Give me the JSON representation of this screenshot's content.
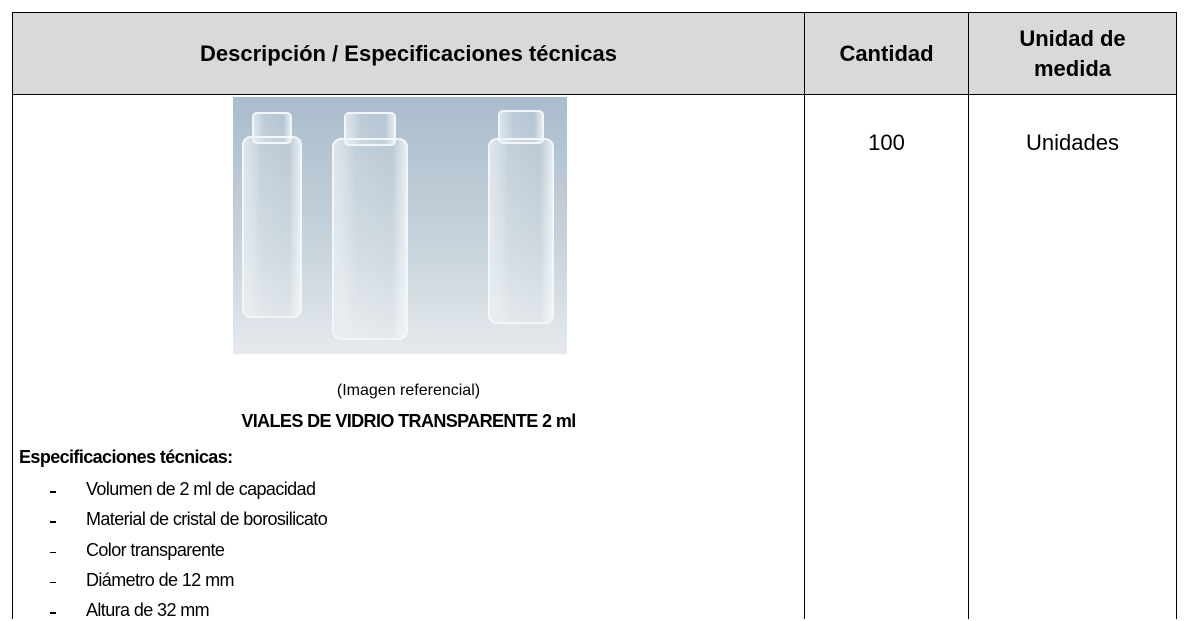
{
  "table": {
    "headers": [
      "Descripción / Especificaciones técnicas",
      "Cantidad",
      "Unidad de medida"
    ],
    "rows": [
      {
        "image_caption": "(Imagen referencial)",
        "product": "VIALES DE VIDRIO TRANSPARENTE 2 ml",
        "spec_heading": "Especificaciones técnicas:",
        "specs": [
          "Volumen de 2 ml de capacidad",
          "Material de cristal de borosilicato",
          "Color transparente",
          "Diámetro de 12 mm",
          "Altura de 32 mm"
        ],
        "quantity": 100,
        "unit": "Unidades"
      }
    ]
  }
}
